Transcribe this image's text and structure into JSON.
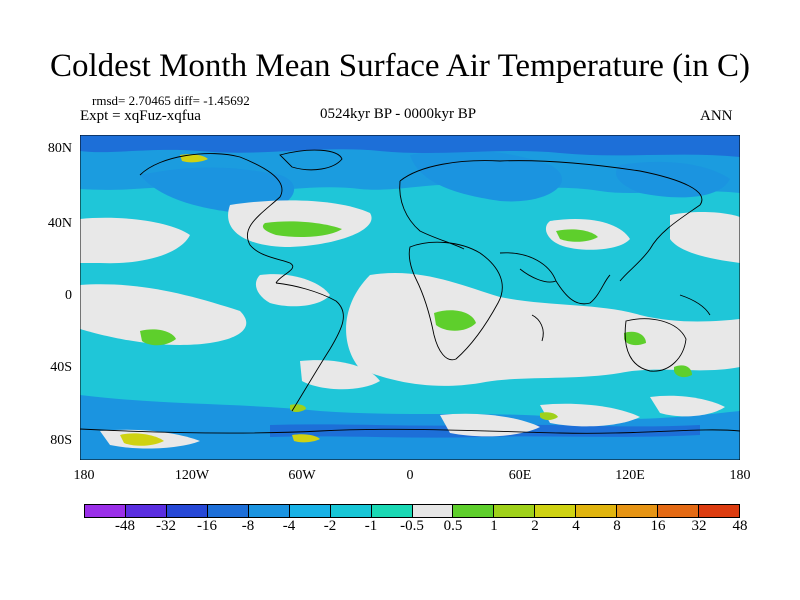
{
  "title": "Coldest Month Mean Surface Air Temperature (in C)",
  "stats": "rmsd= 2.70465 diff= -1.45692",
  "experiment": "Expt = xqFuz-xqfua",
  "period": "0524kyr BP - 0000kyr BP",
  "season": "ANN",
  "y_axis_labels": [
    "80N",
    "40N",
    "0",
    "40S",
    "80S"
  ],
  "x_axis_labels": [
    "180",
    "120W",
    "60W",
    "0",
    "60E",
    "120E",
    "180"
  ],
  "colorbar": {
    "labels": [
      "-48",
      "-32",
      "-16",
      "-8",
      "-4",
      "-2",
      "-1",
      "-0.5",
      "0.5",
      "1",
      "2",
      "4",
      "8",
      "16",
      "32",
      "48"
    ],
    "colors": [
      "#9a2fe8",
      "#5a2ee0",
      "#2748d6",
      "#1d6fd8",
      "#1b94e0",
      "#19b2e6",
      "#18c6d6",
      "#1ad8b4",
      "#e6e6e6",
      "#5ecf2c",
      "#9fd11a",
      "#cfd212",
      "#e0b40e",
      "#e69414",
      "#e46a14",
      "#dc3c10"
    ]
  }
}
